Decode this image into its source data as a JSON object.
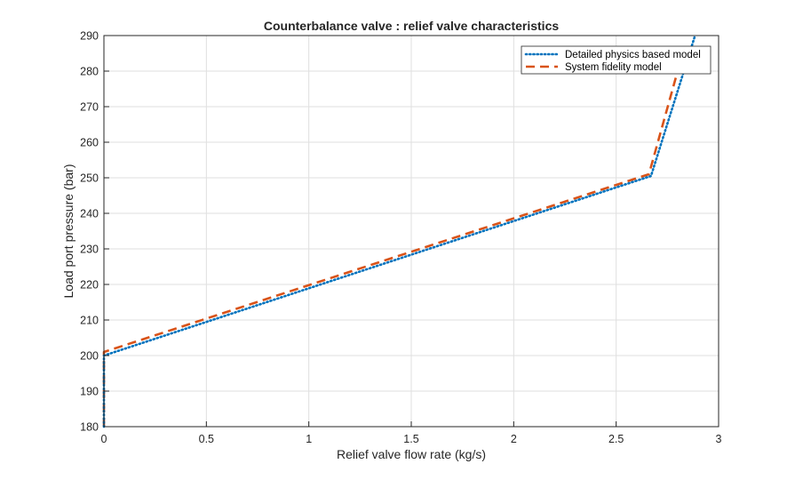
{
  "chart_data": {
    "type": "line",
    "title": "Counterbalance valve : relief valve characteristics",
    "xlabel": "Relief valve flow rate (kg/s)",
    "ylabel": "Load port pressure (bar)",
    "xlim": [
      0,
      3
    ],
    "ylim": [
      180,
      290
    ],
    "xticks": [
      "0",
      "0.5",
      "1",
      "1.5",
      "2",
      "2.5",
      "3"
    ],
    "yticks": [
      "180",
      "190",
      "200",
      "210",
      "220",
      "230",
      "240",
      "250",
      "260",
      "270",
      "280",
      "290"
    ],
    "grid": true,
    "legend_position": "top-right",
    "series": [
      {
        "name": "Detailed physics based model",
        "color": "#0072BD",
        "style": "dotted",
        "x": [
          0,
          0,
          2.67,
          2.885
        ],
        "y": [
          180,
          200,
          250.5,
          290
        ]
      },
      {
        "name": "System fidelity model",
        "color": "#D95319",
        "style": "dashed",
        "x": [
          0,
          0,
          2.66,
          2.8
        ],
        "y": [
          180,
          201,
          251,
          280
        ]
      }
    ]
  }
}
